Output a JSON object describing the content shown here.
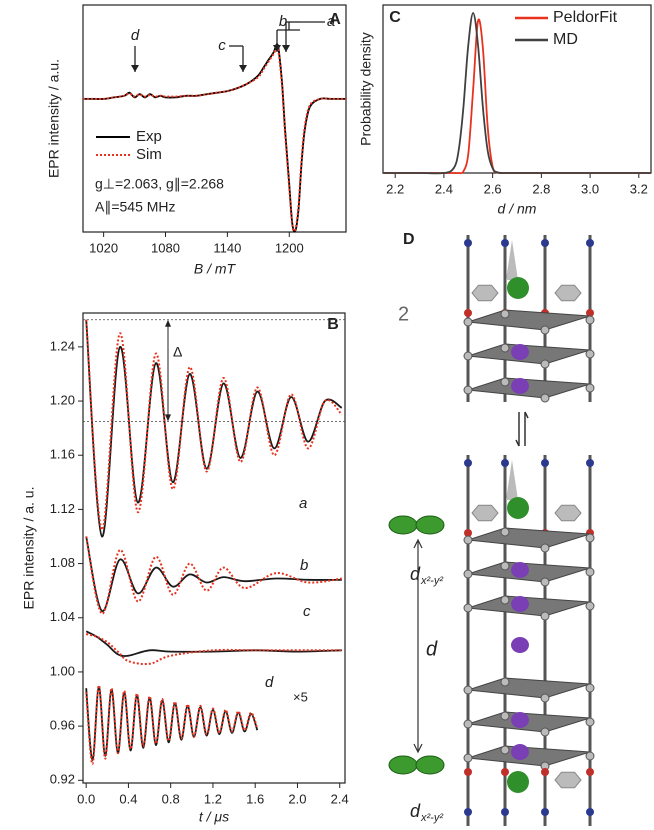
{
  "chart_data": [
    {
      "type": "line",
      "panel": "A",
      "ylabel": "EPR intensity / a.u.",
      "xlabel": "B / mT",
      "xlim": [
        1000,
        1255
      ],
      "ylim": [
        -0.85,
        0.6
      ],
      "xticks": [
        1020,
        1080,
        1140,
        1200
      ],
      "x": [
        1000,
        1010,
        1020,
        1030,
        1040,
        1045,
        1050,
        1055,
        1060,
        1065,
        1070,
        1075,
        1080,
        1090,
        1100,
        1110,
        1120,
        1130,
        1140,
        1150,
        1160,
        1170,
        1175,
        1180,
        1185,
        1188,
        1190,
        1193,
        1196,
        1200,
        1203,
        1206,
        1209,
        1212,
        1215,
        1220,
        1230,
        1240,
        1255
      ],
      "series": [
        {
          "name": "Exp",
          "color": "#000000",
          "values": [
            0,
            0,
            0,
            0.01,
            0.02,
            0.04,
            0.01,
            0.03,
            0.01,
            0.03,
            0.01,
            0.02,
            0.01,
            0.01,
            0.02,
            0.02,
            0.03,
            0.04,
            0.05,
            0.07,
            0.1,
            0.15,
            0.2,
            0.25,
            0.3,
            0.35,
            0.3,
            0.1,
            -0.2,
            -0.55,
            -0.8,
            -0.84,
            -0.7,
            -0.4,
            -0.2,
            -0.05,
            0,
            0,
            0
          ]
        },
        {
          "name": "Sim",
          "color": "#e8321e",
          "dashed": true,
          "values": [
            0,
            0,
            0,
            0.01,
            0.02,
            0.035,
            0.015,
            0.03,
            0.015,
            0.025,
            0.015,
            0.02,
            0.015,
            0.015,
            0.02,
            0.02,
            0.03,
            0.04,
            0.05,
            0.07,
            0.1,
            0.14,
            0.19,
            0.24,
            0.29,
            0.33,
            0.28,
            0.08,
            -0.22,
            -0.57,
            -0.81,
            -0.83,
            -0.68,
            -0.38,
            -0.18,
            -0.04,
            0,
            0,
            0
          ]
        }
      ],
      "annotations": [
        "d",
        "c",
        "b",
        "a"
      ],
      "parameters": [
        "g⊥=2.063, g∥=2.268",
        "A∥=545 MHz"
      ]
    },
    {
      "type": "line",
      "panel": "C",
      "ylabel": "Probability density",
      "xlabel": "d / nm",
      "xlim": [
        2.15,
        3.25
      ],
      "ylim": [
        0,
        1.05
      ],
      "xticks": [
        2.2,
        2.4,
        2.6,
        2.8,
        {
          "value": 3,
          "label": "3.0"
        },
        3.2
      ],
      "x": [
        2.15,
        2.3,
        2.4,
        2.44,
        2.46,
        2.48,
        2.5,
        2.52,
        2.54,
        2.56,
        2.58,
        2.6,
        2.62,
        2.66,
        2.8,
        3.25
      ],
      "series": [
        {
          "name": "PeldorFit",
          "color": "#e8321e",
          "values": [
            0,
            0,
            0,
            0,
            0,
            0.01,
            0.12,
            0.52,
            0.95,
            0.78,
            0.28,
            0.04,
            0.003,
            0,
            0,
            0
          ]
        },
        {
          "name": "MD",
          "color": "#404040",
          "values": [
            0,
            0,
            0,
            0.03,
            0.135,
            0.41,
            0.8,
            1,
            0.8,
            0.41,
            0.135,
            0.03,
            0.004,
            0,
            0,
            0
          ]
        }
      ]
    },
    {
      "type": "line",
      "panel": "B",
      "ylabel": "EPR intensity / a. u.",
      "xlabel": "t / μs",
      "xlim": [
        -0.03,
        2.45
      ],
      "ylim": [
        0.918,
        1.265
      ],
      "xticks": [
        {
          "value": 0,
          "label": "0.0"
        },
        0.4,
        0.8,
        1.2,
        1.6,
        {
          "value": 2,
          "label": "2.0"
        },
        2.4
      ],
      "yticks": [
        0.92,
        0.96,
        {
          "value": 1,
          "label": "1.00"
        },
        1.04,
        1.08,
        1.12,
        1.16,
        {
          "value": 1.2,
          "label": "1.20"
        },
        1.24
      ],
      "exp_color": "#1a1a1a",
      "sim_color": "#e8321e",
      "delta": {
        "label": "Δ",
        "from": 1.26,
        "to": 1.185
      },
      "traces": [
        {
          "label": "a",
          "x": [
            0,
            0.15,
            0.32,
            0.49,
            0.66,
            0.82,
            0.98,
            1.14,
            1.3,
            1.46,
            1.62,
            1.78,
            1.94,
            2.1,
            2.26,
            2.42
          ],
          "exp": [
            1.26,
            1.1,
            1.24,
            1.125,
            1.228,
            1.14,
            1.22,
            1.15,
            1.213,
            1.158,
            1.207,
            1.165,
            1.203,
            1.17,
            1.2,
            1.195
          ],
          "sim": [
            1.26,
            1.105,
            1.25,
            1.118,
            1.235,
            1.135,
            1.225,
            1.148,
            1.217,
            1.155,
            1.21,
            1.16,
            1.205,
            1.165,
            1.2,
            1.19
          ]
        },
        {
          "label": "b",
          "x": [
            0,
            0.15,
            0.32,
            0.49,
            0.66,
            0.82,
            0.98,
            1.14,
            1.3,
            1.5,
            1.8,
            2.1,
            2.42
          ],
          "exp": [
            1.1,
            1.045,
            1.083,
            1.058,
            1.077,
            1.063,
            1.072,
            1.066,
            1.07,
            1.067,
            1.069,
            1.068,
            1.068
          ],
          "sim": [
            1.1,
            1.043,
            1.09,
            1.052,
            1.085,
            1.057,
            1.08,
            1.06,
            1.077,
            1.062,
            1.073,
            1.066,
            1.069
          ]
        },
        {
          "label": "c",
          "x": [
            0,
            0.1,
            0.2,
            0.3,
            0.4,
            0.6,
            0.8,
            1.2,
            1.6,
            2,
            2.42
          ],
          "exp": [
            1.03,
            1.026,
            1.02,
            1.013,
            1.012,
            1.016,
            1.015,
            1.015,
            1.016,
            1.015,
            1.016
          ],
          "sim": [
            1.028,
            1.026,
            1.022,
            1.015,
            1.008,
            1.006,
            1.012,
            1.016,
            1.016,
            1.016,
            1.016
          ]
        },
        {
          "label": "d",
          "scale": "×5",
          "x": [
            0,
            0.06,
            0.12,
            0.18,
            0.24,
            0.3,
            0.36,
            0.42,
            0.48,
            0.54,
            0.6,
            0.66,
            0.72,
            0.78,
            0.84,
            0.9,
            0.96,
            1.02,
            1.08,
            1.14,
            1.2,
            1.26,
            1.32,
            1.38,
            1.44,
            1.5,
            1.56,
            1.62
          ],
          "exp": [
            0.988,
            0.935,
            0.989,
            0.938,
            0.987,
            0.94,
            0.985,
            0.942,
            0.983,
            0.944,
            0.981,
            0.946,
            0.979,
            0.948,
            0.977,
            0.95,
            0.975,
            0.952,
            0.974,
            0.953,
            0.972,
            0.954,
            0.971,
            0.955,
            0.97,
            0.956,
            0.969,
            0.957
          ],
          "sim": [
            0.985,
            0.932,
            0.99,
            0.936,
            0.988,
            0.94,
            0.986,
            0.943,
            0.984,
            0.945,
            0.982,
            0.947,
            0.98,
            0.949,
            0.978,
            0.951,
            0.976,
            0.952,
            0.975,
            0.954,
            0.973,
            0.955,
            0.972,
            0.956,
            0.971,
            0.957,
            0.97,
            0.958
          ]
        }
      ]
    }
  ],
  "diagram": {
    "panel": "D",
    "count": "2",
    "distance": "d",
    "orbital_top": {
      "main": "d",
      "sub": "x²-y²"
    },
    "orbital_bottom": {
      "main": "d",
      "sub": "x²-y²"
    }
  }
}
